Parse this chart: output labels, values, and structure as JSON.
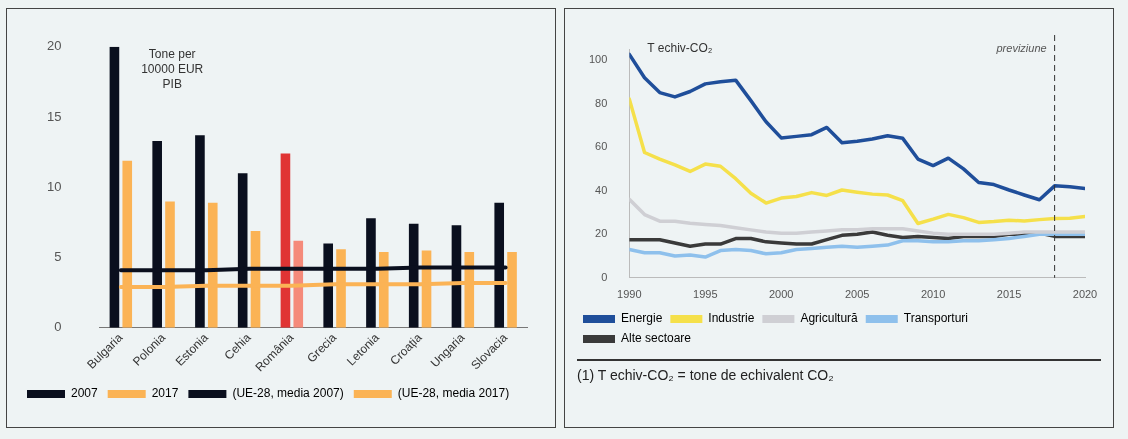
{
  "chart_data": [
    {
      "type": "bar",
      "ylabel": "Tone per 10000 EUR PIB",
      "categories": [
        "Bulgaria",
        "Polonia",
        "Estonia",
        "Cehia",
        "România",
        "Grecia",
        "Letonia",
        "Croația",
        "Ungaria",
        "Slovacia"
      ],
      "series": [
        {
          "name": "2007",
          "color": "#0a0f1e",
          "colors": [
            "#0a0f1e",
            "#0a0f1e",
            "#0a0f1e",
            "#0a0f1e",
            "#e03434",
            "#0a0f1e",
            "#0a0f1e",
            "#0a0f1e",
            "#0a0f1e",
            "#0a0f1e"
          ],
          "values": [
            20.0,
            13.3,
            13.7,
            11.0,
            12.4,
            6.0,
            7.8,
            7.4,
            7.3,
            8.9
          ]
        },
        {
          "name": "2017",
          "color": "#fbb355",
          "colors": [
            "#fbb355",
            "#fbb355",
            "#fbb355",
            "#fbb355",
            "#f58a7a",
            "#fbb355",
            "#fbb355",
            "#fbb355",
            "#fbb355",
            "#fbb355"
          ],
          "values": [
            11.9,
            9.0,
            8.9,
            6.9,
            6.2,
            5.6,
            5.4,
            5.5,
            5.4,
            5.4
          ]
        },
        {
          "name": "(UE-28, media 2007)",
          "type": "line",
          "color": "#0a0f1e",
          "values": [
            4.1,
            4.1,
            4.1,
            4.2,
            4.2,
            4.2,
            4.2,
            4.3,
            4.3,
            4.3
          ]
        },
        {
          "name": "(UE-28, media 2017)",
          "type": "line",
          "color": "#fbb355",
          "values": [
            2.9,
            2.9,
            3.0,
            3.0,
            3.0,
            3.1,
            3.1,
            3.1,
            3.2,
            3.2
          ]
        }
      ],
      "ylim": [
        0,
        20
      ],
      "yticks": [
        0,
        5,
        10,
        15,
        20
      ],
      "grid": false,
      "legend": "bottom",
      "marker": "none"
    },
    {
      "type": "line",
      "ylabel": "T echiv-CO₂",
      "annotations": [
        "(1) T echiv-CO₂ = tone de echivalent CO₂"
      ],
      "x": [
        1990,
        1991,
        1992,
        1993,
        1994,
        1995,
        1996,
        1997,
        1998,
        1999,
        2000,
        2001,
        2002,
        2003,
        2004,
        2005,
        2006,
        2007,
        2008,
        2009,
        2010,
        2011,
        2012,
        2013,
        2014,
        2015,
        2016,
        2017,
        2018,
        2019,
        2020
      ],
      "series": [
        {
          "name": "Energie",
          "color": "#1f4e9a",
          "values": [
            102.5,
            91.8,
            85,
            83,
            85.5,
            89,
            90,
            90.7,
            81.3,
            71.6,
            64.2,
            64.9,
            65.7,
            69,
            62,
            62.7,
            63.7,
            65.2,
            64,
            54.5,
            51.5,
            54.9,
            50,
            43.7,
            42.8,
            40.3,
            38,
            35.8,
            42.2,
            41.8,
            41
          ]
        },
        {
          "name": "Industrie",
          "color": "#f5e04a",
          "values": [
            82,
            57.5,
            54.5,
            51.8,
            48.8,
            52.2,
            51.2,
            45.5,
            38.8,
            34.3,
            36.6,
            37.3,
            39.1,
            37.8,
            40.3,
            39.3,
            38.4,
            38,
            35.4,
            24.9,
            26.9,
            29.1,
            27.6,
            25.4,
            25.8,
            26.4,
            26.1,
            26.7,
            27.2,
            27.3,
            28.1
          ]
        },
        {
          "name": "Agricultură",
          "color": "#cfcfd4",
          "values": [
            36,
            29,
            26,
            26,
            25,
            24.5,
            24,
            23,
            22,
            21,
            20.5,
            20.5,
            21,
            21.5,
            22,
            22,
            22.5,
            22.5,
            22.5,
            21.5,
            20.5,
            20,
            20,
            20,
            20,
            20.5,
            21,
            21,
            21,
            21,
            21
          ]
        },
        {
          "name": "Transporturi",
          "color": "#8ec0ec",
          "values": [
            13,
            11.5,
            11.5,
            10,
            10.5,
            9.5,
            12.5,
            13,
            12.5,
            11,
            11.5,
            13,
            13.5,
            14,
            14.5,
            14,
            14.5,
            15,
            17,
            17,
            16.5,
            16.5,
            17,
            17,
            17.5,
            18,
            19,
            20,
            20,
            20,
            20
          ]
        },
        {
          "name": "Alte sectoare",
          "color": "#3a3a3a",
          "values": [
            17.5,
            17.5,
            17.5,
            16,
            14.5,
            15.5,
            15.5,
            18,
            18,
            16.5,
            16,
            15.5,
            15.5,
            17.5,
            19.5,
            20,
            21,
            19.5,
            18.5,
            19,
            18.5,
            18,
            19,
            19,
            19,
            20,
            20,
            20.5,
            19,
            19,
            19
          ]
        }
      ],
      "xlim": [
        1990,
        2020
      ],
      "xticks": [
        1990,
        1995,
        2000,
        2005,
        2010,
        2015,
        2020
      ],
      "ylim": [
        0,
        105
      ],
      "yticks": [
        0,
        20,
        40,
        60,
        80,
        100
      ],
      "ref_lines": [
        {
          "axis": "x",
          "value": 2018,
          "label": "previziune",
          "color": "#333333",
          "line_style": "dashed"
        }
      ],
      "grid": false,
      "legend": "bottom",
      "marker": "none",
      "line_style": "solid"
    }
  ]
}
